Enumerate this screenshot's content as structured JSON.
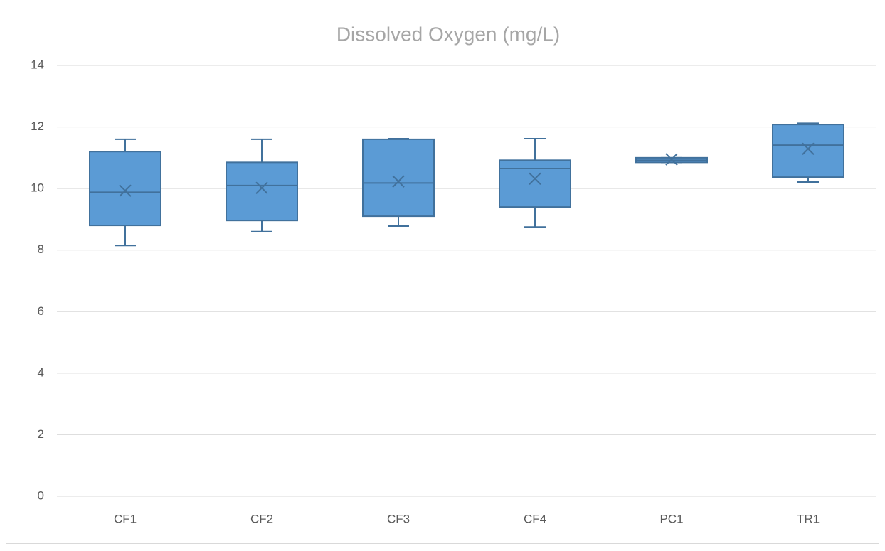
{
  "chart_data": {
    "type": "box",
    "title": "Dissolved Oxygen (mg/L)",
    "categories": [
      "CF1",
      "CF2",
      "CF3",
      "CF4",
      "PC1",
      "TR1"
    ],
    "series": [
      {
        "color": "#5b9bd5",
        "min": [
          8.15,
          8.6,
          8.78,
          8.75,
          10.85,
          10.21
        ],
        "q1": [
          8.8,
          8.96,
          9.1,
          9.4,
          10.85,
          10.37
        ],
        "median": [
          9.88,
          10.1,
          10.18,
          10.65,
          10.92,
          11.41
        ],
        "q3": [
          11.2,
          10.85,
          11.6,
          10.92,
          11.0,
          12.08
        ],
        "max": [
          11.6,
          11.6,
          11.62,
          11.62,
          11.0,
          12.12
        ],
        "mean": [
          9.93,
          10.02,
          10.23,
          10.32,
          10.95,
          11.29
        ]
      }
    ],
    "ylim": [
      0,
      14
    ],
    "yticks": [
      0,
      2,
      4,
      6,
      8,
      10,
      12,
      14
    ],
    "grid": true
  }
}
